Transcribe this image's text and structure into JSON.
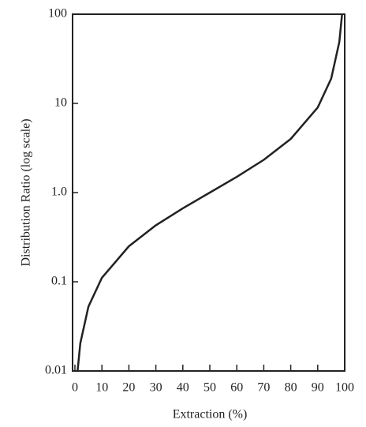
{
  "chart_data": {
    "type": "line",
    "x_label": "Extraction (%)",
    "y_label": "Distribution Ratio (log scale)",
    "x": [
      1,
      2,
      5,
      10,
      20,
      30,
      40,
      50,
      60,
      70,
      80,
      90,
      95,
      98,
      99
    ],
    "series": [
      {
        "color": "#222222",
        "values": [
          0.0101,
          0.0204,
          0.0526,
          0.111,
          0.25,
          0.43,
          0.667,
          1,
          1.5,
          2.33,
          4,
          9,
          19,
          49,
          99
        ]
      }
    ],
    "xlim": [
      0,
      100
    ],
    "xticks": [
      0,
      10,
      20,
      30,
      40,
      50,
      60,
      70,
      80,
      90,
      100
    ],
    "ylim": [
      0.01,
      100
    ],
    "yticks": [
      0.01,
      0.1,
      {
        "value": 1,
        "label": "1.0"
      },
      10,
      100
    ],
    "log_y": true,
    "grid": false
  }
}
